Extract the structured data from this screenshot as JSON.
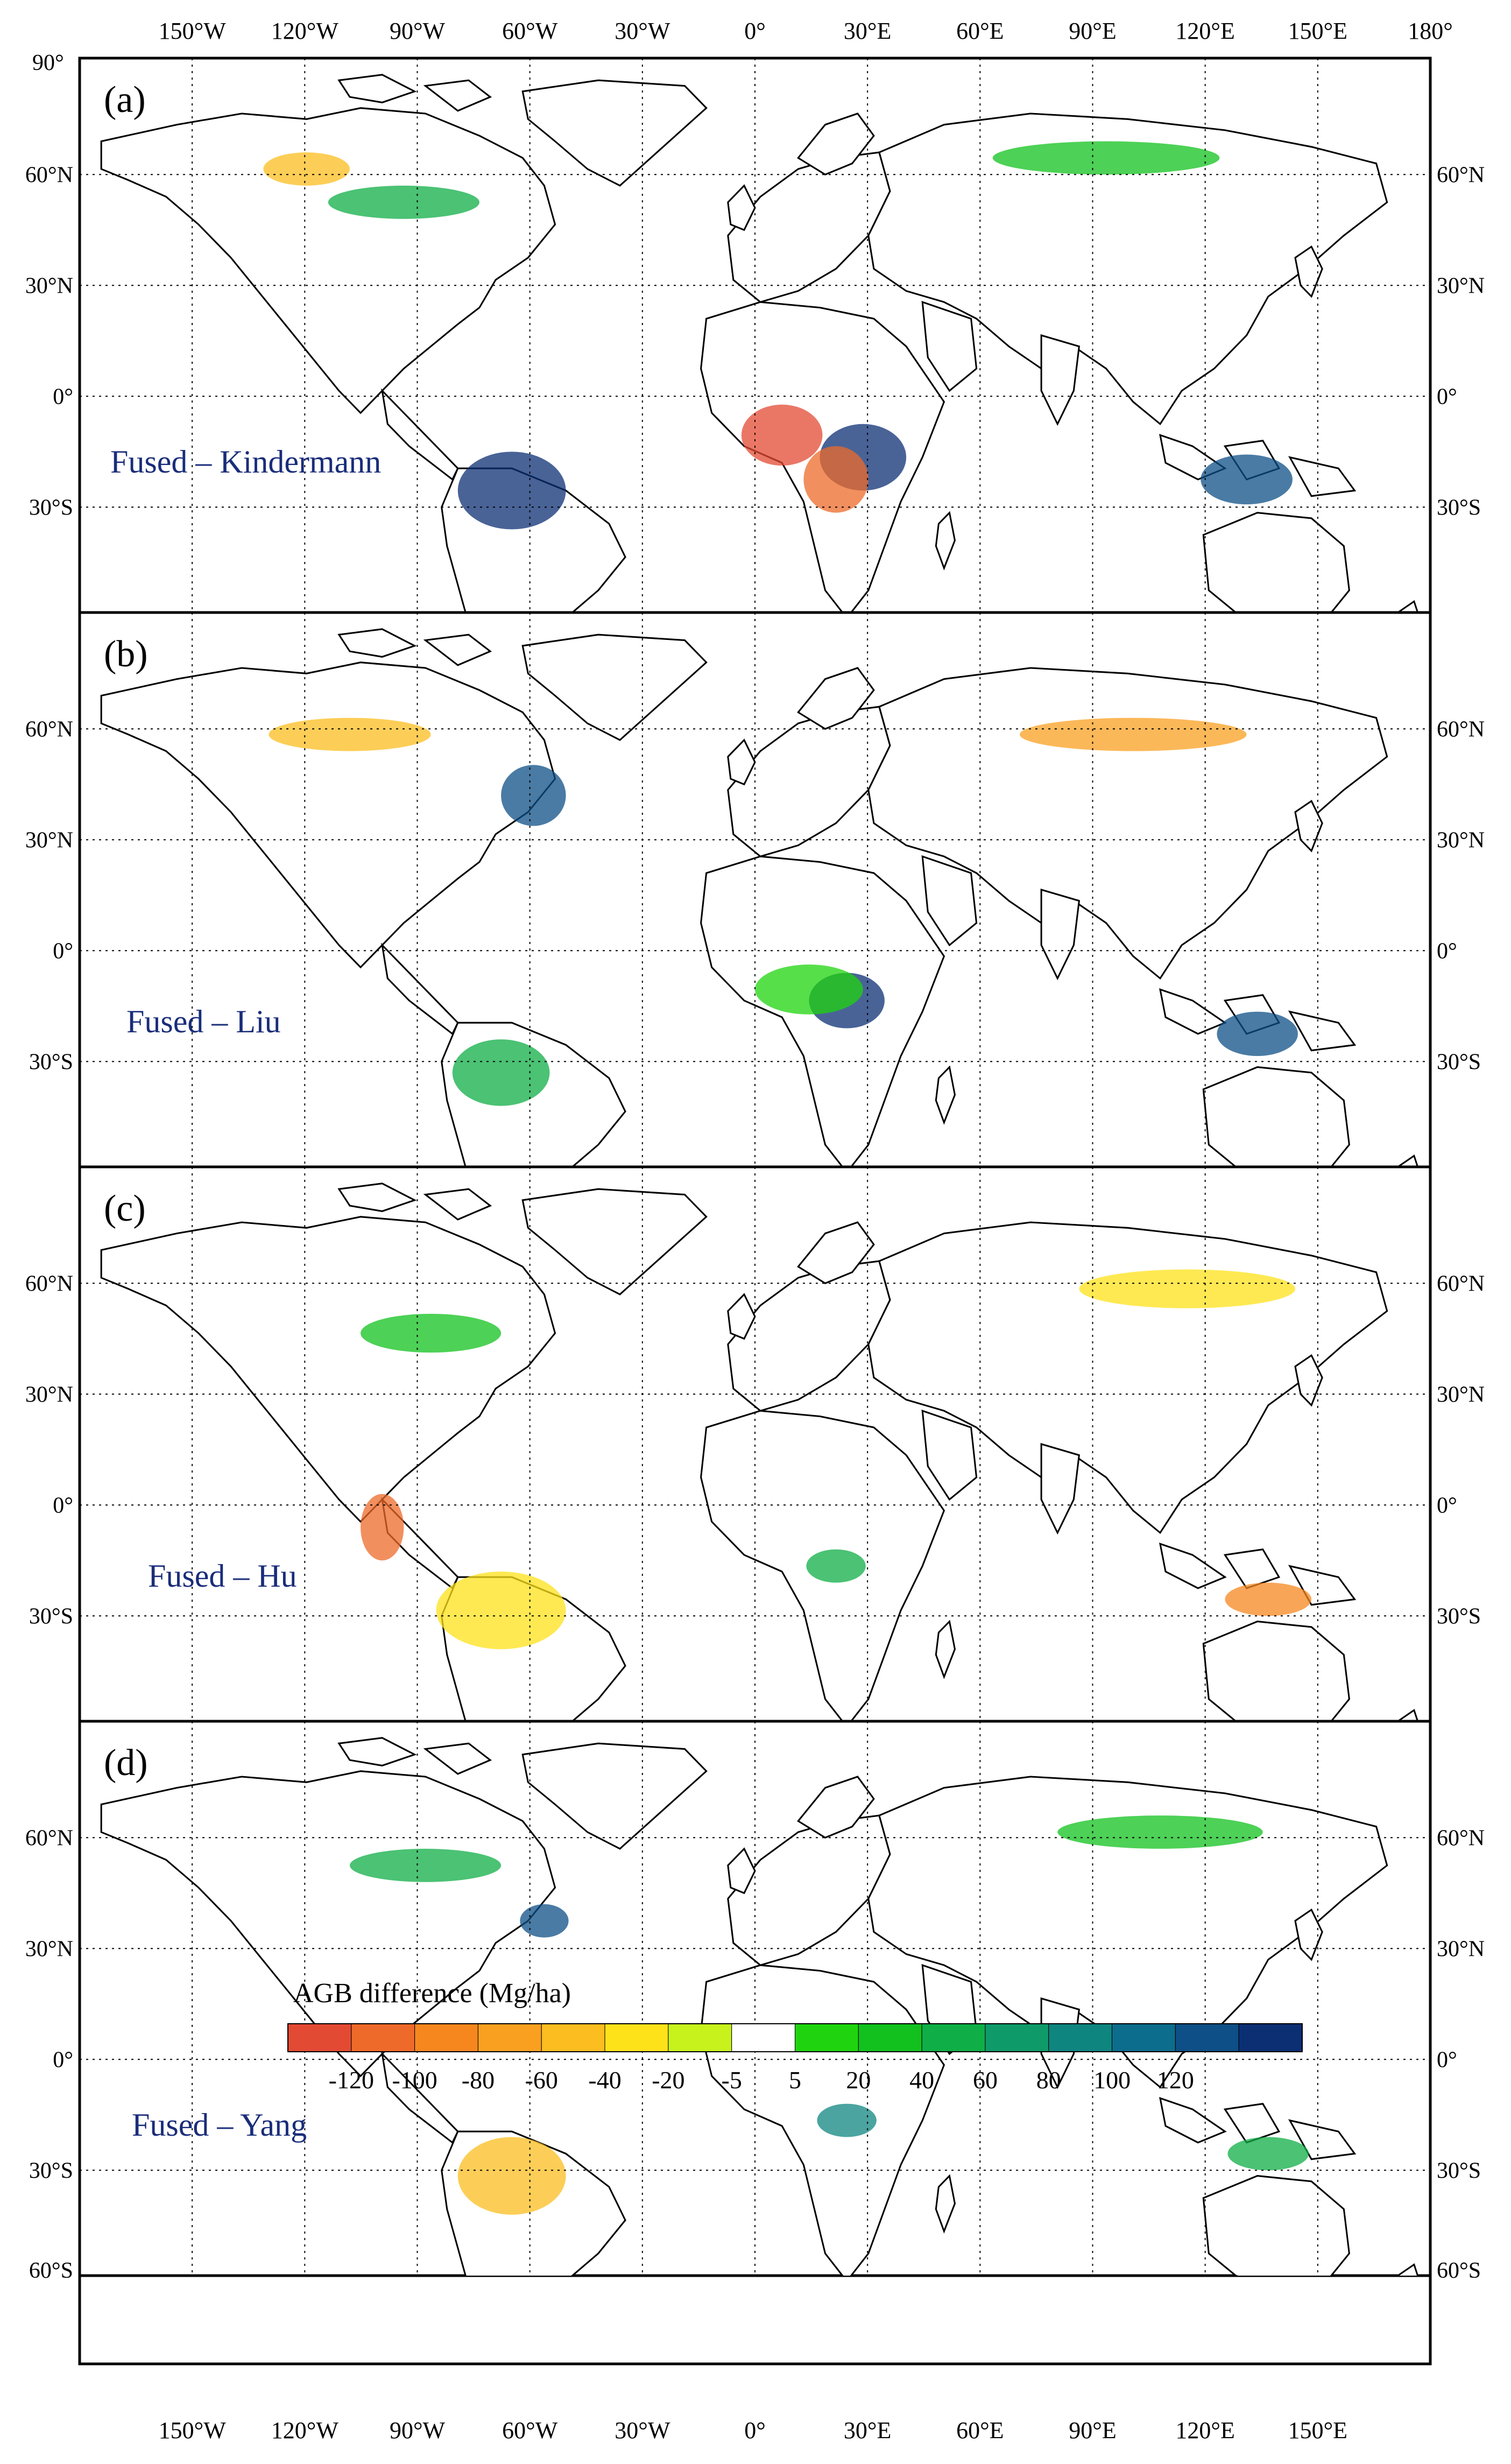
{
  "lon_ticks_top": [
    "150°W",
    "120°W",
    "90°W",
    "60°W",
    "30°W",
    "0°",
    "30°E",
    "60°E",
    "90°E",
    "120°E",
    "150°E",
    "180°"
  ],
  "lon_ticks_bottom": [
    "150°W",
    "120°W",
    "90°W",
    "60°W",
    "30°W",
    "0°",
    "30°E",
    "60°E",
    "90°E",
    "120°E",
    "150°E"
  ],
  "left_corner_label": "90°",
  "lat_ticks_left": [
    "60°N",
    "30°N",
    "0°",
    "30°S"
  ],
  "lat_ticks_right": [
    "60°N",
    "30°N",
    "0°",
    "30°S"
  ],
  "panel_d_extra_lat_left": "60°S",
  "panel_d_extra_lat_right": "60°S",
  "panels": [
    {
      "letter": "(a)",
      "label": "Fused – Kindermann"
    },
    {
      "letter": "(b)",
      "label": "Fused – Liu"
    },
    {
      "letter": "(c)",
      "label": "Fused – Hu"
    },
    {
      "letter": "(d)",
      "label": "Fused – Yang"
    }
  ],
  "legend": {
    "title": "AGB difference (Mg/ha)",
    "tick_labels": [
      "-120",
      "-100",
      "-80",
      "-60",
      "-40",
      "-20",
      "-5",
      "5",
      "20",
      "40",
      "60",
      "80",
      "100",
      "120"
    ],
    "colors": [
      "#e34a33",
      "#ee6a2a",
      "#f6871f",
      "#f9a021",
      "#fbbd1f",
      "#fde21a",
      "#c7f21c",
      "#ffffff",
      "#1fd40e",
      "#12c11e",
      "#0fae46",
      "#0f9a6a",
      "#0f8580",
      "#0d6d8c",
      "#0d4f86",
      "#0c2f74"
    ]
  },
  "land_color": "#ffffff",
  "coast_color": "#000000",
  "label_color": "#1a2d7a"
}
